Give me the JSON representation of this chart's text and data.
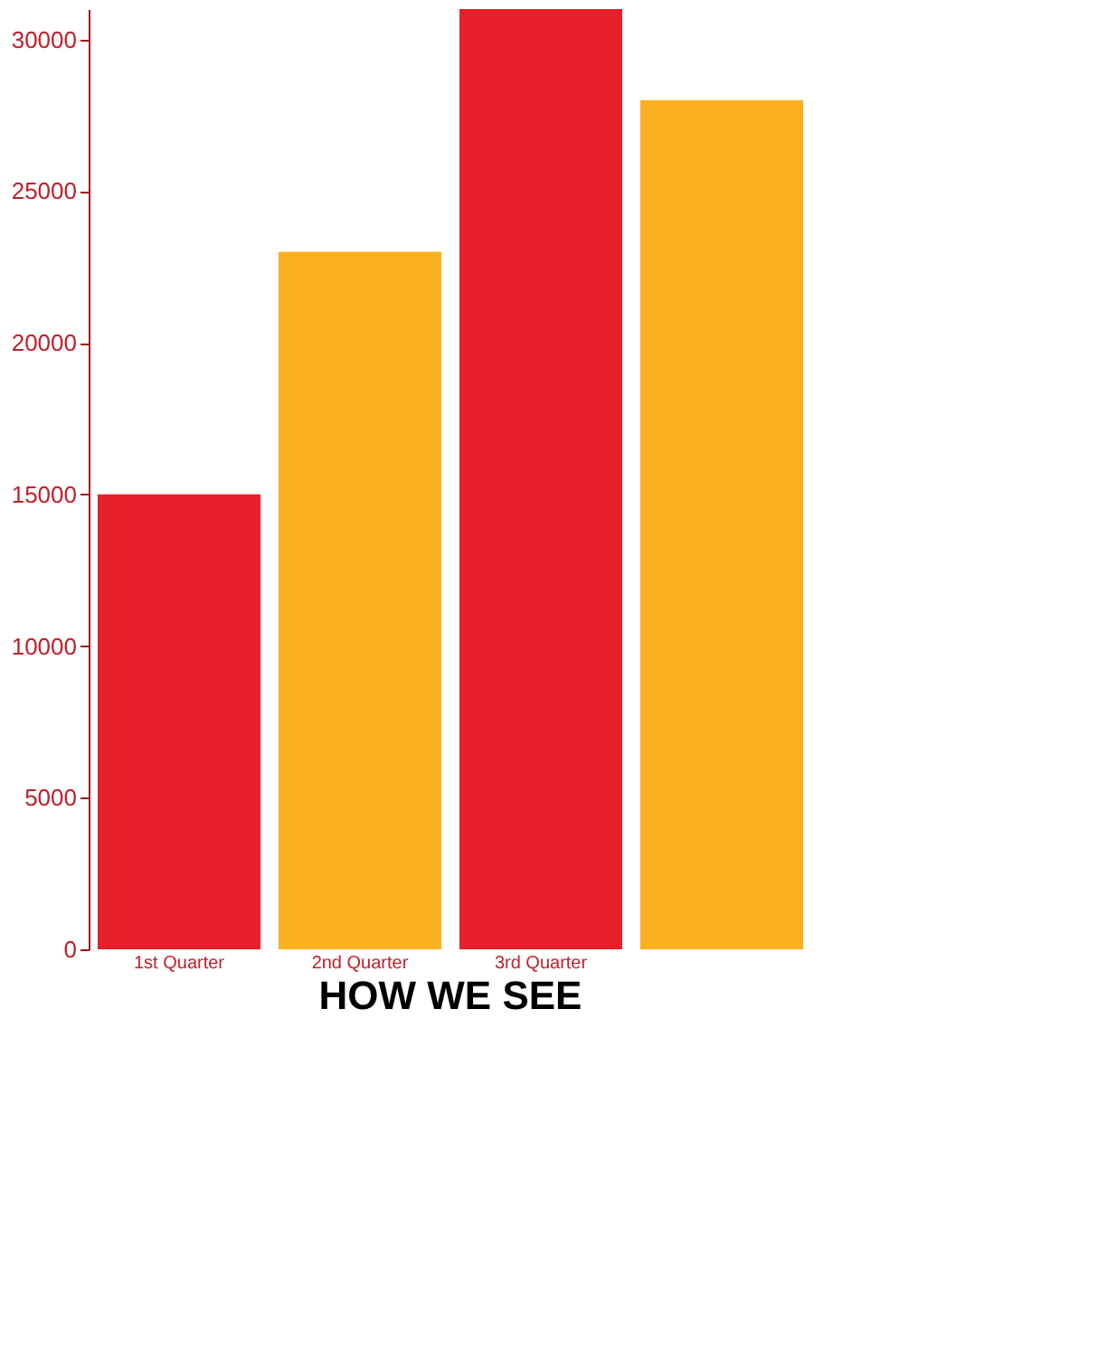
{
  "chart_data": {
    "type": "bar",
    "categories": [
      "1st Quarter",
      "2nd Quarter",
      "3rd Quarter",
      null
    ],
    "values": [
      15000,
      23000,
      31000,
      28000
    ],
    "colors": [
      "#e8202a",
      "#fbb01f",
      "#e8202a",
      "#fbb01f"
    ],
    "ylim": [
      0,
      31000
    ],
    "yticks": [
      0,
      5000,
      10000,
      15000,
      20000,
      25000,
      30000
    ],
    "grid": false,
    "annotations": [
      "HOW WE SEE"
    ]
  }
}
